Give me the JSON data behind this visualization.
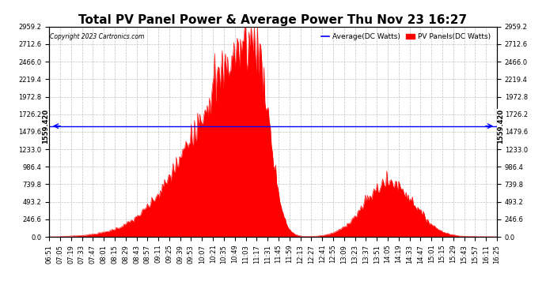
{
  "title": "Total PV Panel Power & Average Power Thu Nov 23 16:27",
  "copyright": "Copyright 2023 Cartronics.com",
  "legend_entries": [
    "Average(DC Watts)",
    "PV Panels(DC Watts)"
  ],
  "legend_colors": [
    "blue",
    "red"
  ],
  "average_value": 1559.42,
  "y_max": 2959.2,
  "y_min": 0.0,
  "y_ticks": [
    0.0,
    246.6,
    493.2,
    739.8,
    986.4,
    1233.0,
    1479.6,
    1726.2,
    1972.8,
    2219.4,
    2466.0,
    2712.6,
    2959.2
  ],
  "x_tick_labels": [
    "06:51",
    "07:05",
    "07:19",
    "07:33",
    "07:47",
    "08:01",
    "08:15",
    "08:29",
    "08:43",
    "08:57",
    "09:11",
    "09:25",
    "09:39",
    "09:53",
    "10:07",
    "10:21",
    "10:35",
    "10:49",
    "11:03",
    "11:17",
    "11:31",
    "11:45",
    "11:59",
    "12:13",
    "12:27",
    "12:41",
    "12:55",
    "13:09",
    "13:23",
    "13:37",
    "13:51",
    "14:05",
    "14:19",
    "14:33",
    "14:47",
    "15:01",
    "15:15",
    "15:29",
    "15:43",
    "15:57",
    "16:11",
    "16:25"
  ],
  "background_color": "#ffffff",
  "plot_bg_color": "#ffffff",
  "grid_color": "#bbbbbb",
  "area_color": "red",
  "line_color": "blue",
  "title_fontsize": 11,
  "tick_fontsize": 6,
  "avg_label": "1559.420",
  "figwidth": 6.9,
  "figheight": 3.75,
  "dpi": 100
}
